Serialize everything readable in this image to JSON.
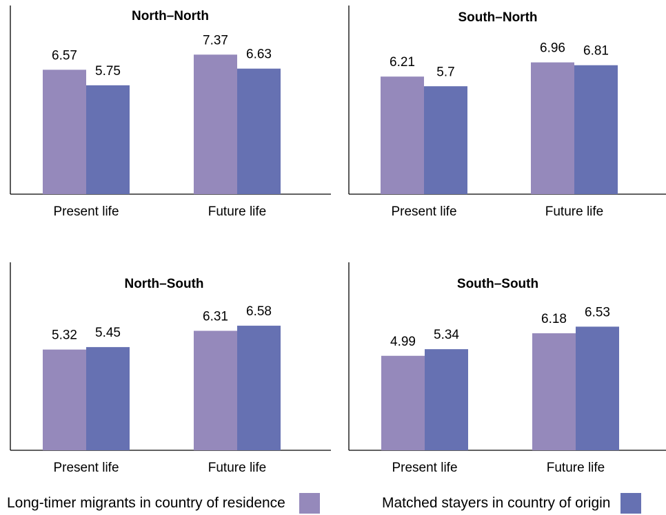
{
  "colors": {
    "series1": "#9589bb",
    "series2": "#6671b2",
    "axis": "#000000"
  },
  "chart_data": [
    {
      "type": "bar",
      "title": "North–North",
      "categories": [
        "Present life",
        "Future life"
      ],
      "series": [
        {
          "name": "Long-timer migrants in country of residence",
          "values": [
            6.57,
            7.37
          ]
        },
        {
          "name": "Matched stayers in country of origin",
          "values": [
            5.75,
            6.63
          ]
        }
      ]
    },
    {
      "type": "bar",
      "title": "South–North",
      "categories": [
        "Present life",
        "Future life"
      ],
      "series": [
        {
          "name": "Long-timer migrants in country of residence",
          "values": [
            6.21,
            6.96
          ]
        },
        {
          "name": "Matched stayers in country of origin",
          "values": [
            5.7,
            6.81
          ]
        }
      ]
    },
    {
      "type": "bar",
      "title": "North–South",
      "categories": [
        "Present life",
        "Future life"
      ],
      "series": [
        {
          "name": "Long-timer migrants in country of residence",
          "values": [
            5.32,
            6.31
          ]
        },
        {
          "name": "Matched stayers in country of origin",
          "values": [
            5.45,
            6.58
          ]
        }
      ]
    },
    {
      "type": "bar",
      "title": "South–South",
      "categories": [
        "Present life",
        "Future life"
      ],
      "series": [
        {
          "name": "Long-timer migrants in country of residence",
          "values": [
            4.99,
            6.18
          ]
        },
        {
          "name": "Matched stayers in country of origin",
          "values": [
            5.34,
            6.53
          ]
        }
      ]
    }
  ],
  "legend": {
    "series1_label": "Long-timer migrants in country of residence",
    "series2_label": "Matched stayers in country of origin"
  }
}
